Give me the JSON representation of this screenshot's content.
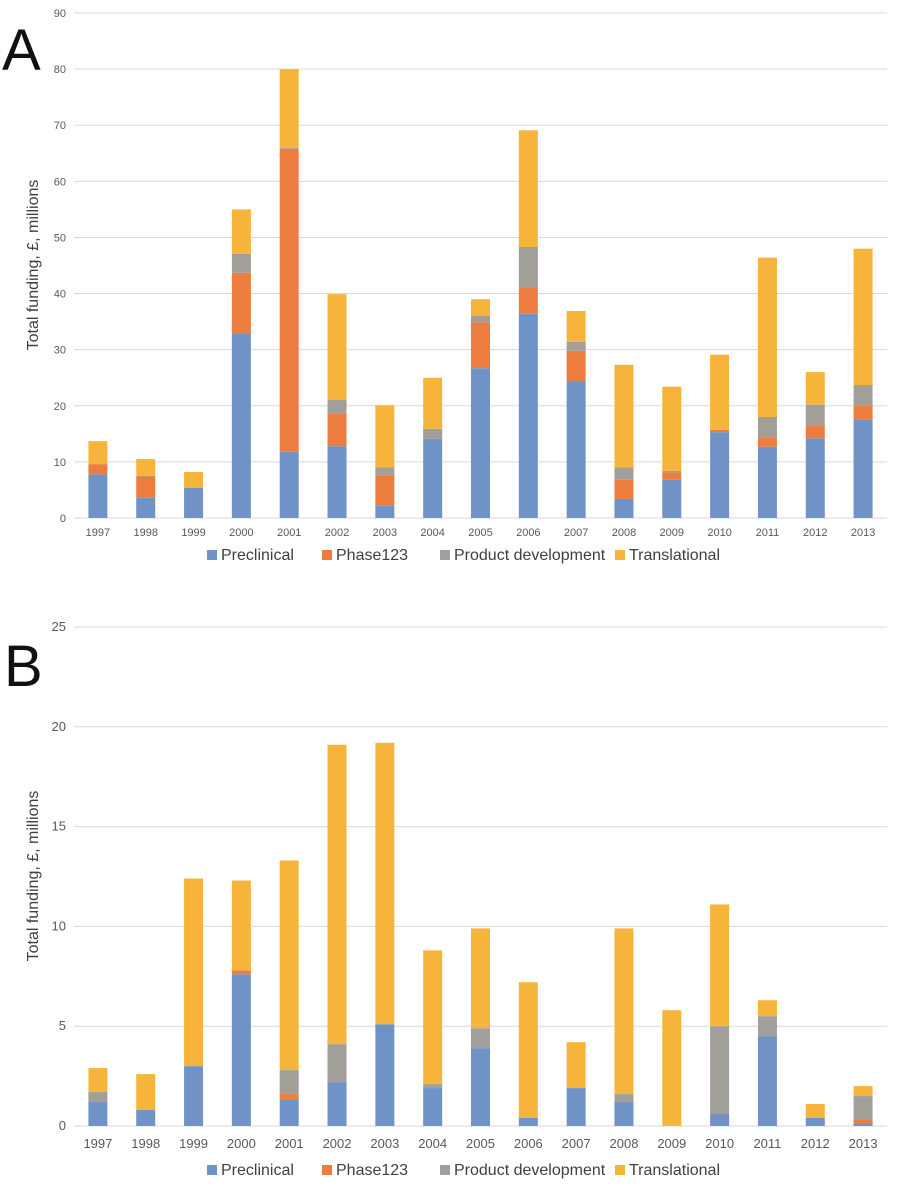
{
  "panels": {
    "a_label": "A",
    "b_label": "B"
  },
  "colors": {
    "Preclinical": "#6f93c7",
    "Phase123": "#ec7d3f",
    "Product development": "#a29e99",
    "Translational": "#f6b53a",
    "grid": "#d9d9d9"
  },
  "chart_data": [
    {
      "type": "bar",
      "stacked": true,
      "panel": "A",
      "title": "",
      "xlabel": "",
      "ylabel": "Total funding, £, millions",
      "ylim": [
        0,
        90
      ],
      "yticks": [
        "0",
        "10",
        "20",
        "30",
        "40",
        "50",
        "60",
        "70",
        "80",
        "90"
      ],
      "categories": [
        "1997",
        "1998",
        "1999",
        "2000",
        "2001",
        "2002",
        "2003",
        "2004",
        "2005",
        "2006",
        "2007",
        "2008",
        "2009",
        "2010",
        "2011",
        "2012",
        "2013"
      ],
      "legend": [
        "Preclinical",
        "Phase123",
        "Product development",
        "Translational"
      ],
      "legend_position": "bottom",
      "series": [
        {
          "name": "Preclinical",
          "values": [
            7.8,
            3.6,
            5.4,
            32.9,
            11.8,
            12.8,
            2.2,
            14.1,
            26.7,
            36.4,
            24.4,
            3.4,
            6.8,
            15.3,
            12.7,
            14.2,
            17.6
          ]
        },
        {
          "name": "Phase123",
          "values": [
            1.8,
            3.8,
            0,
            10.8,
            54.0,
            5.8,
            5.4,
            0,
            8.2,
            4.6,
            5.4,
            3.4,
            1.3,
            0.4,
            1.7,
            2.3,
            2.4
          ]
        },
        {
          "name": "Product development",
          "values": [
            0,
            0.1,
            0,
            3.4,
            0.2,
            2.5,
            1.4,
            1.8,
            1.1,
            7.3,
            1.6,
            2.2,
            0.3,
            0,
            3.6,
            3.7,
            3.7
          ]
        },
        {
          "name": "Translational",
          "values": [
            4.1,
            3.0,
            2.8,
            7.9,
            14.0,
            18.8,
            11.1,
            9.1,
            3.0,
            20.8,
            5.5,
            18.3,
            15.0,
            13.4,
            28.4,
            5.8,
            24.3
          ]
        }
      ]
    },
    {
      "type": "bar",
      "stacked": true,
      "panel": "B",
      "title": "",
      "xlabel": "",
      "ylabel": "Total funding, £, millions",
      "ylim": [
        0,
        25
      ],
      "yticks": [
        "0",
        "5",
        "10",
        "15",
        "20",
        "25"
      ],
      "categories": [
        "1997",
        "1998",
        "1999",
        "2000",
        "2001",
        "2002",
        "2003",
        "2004",
        "2005",
        "2006",
        "2007",
        "2008",
        "2009",
        "2010",
        "2011",
        "2012",
        "2013"
      ],
      "legend": [
        "Preclinical",
        "Phase123",
        "Product development",
        "Translational"
      ],
      "legend_position": "bottom",
      "series": [
        {
          "name": "Preclinical",
          "values": [
            1.2,
            0.8,
            3.0,
            7.6,
            1.3,
            2.2,
            5.1,
            1.9,
            3.9,
            0.4,
            1.9,
            1.2,
            0,
            0.6,
            4.5,
            0.4,
            0.1
          ]
        },
        {
          "name": "Phase123",
          "values": [
            0,
            0,
            0,
            0.2,
            0.3,
            0,
            0,
            0,
            0,
            0,
            0,
            0,
            0,
            0,
            0,
            0,
            0.2
          ]
        },
        {
          "name": "Product development",
          "values": [
            0.5,
            0,
            0,
            0,
            1.2,
            1.9,
            0,
            0.2,
            1.0,
            0,
            0,
            0.4,
            0,
            4.4,
            1.0,
            0,
            1.2
          ]
        },
        {
          "name": "Translational",
          "values": [
            1.2,
            1.8,
            9.4,
            4.5,
            10.5,
            15.0,
            14.1,
            6.7,
            5.0,
            6.8,
            2.3,
            8.3,
            5.8,
            6.1,
            0.8,
            0.7,
            0.5
          ]
        }
      ]
    }
  ]
}
